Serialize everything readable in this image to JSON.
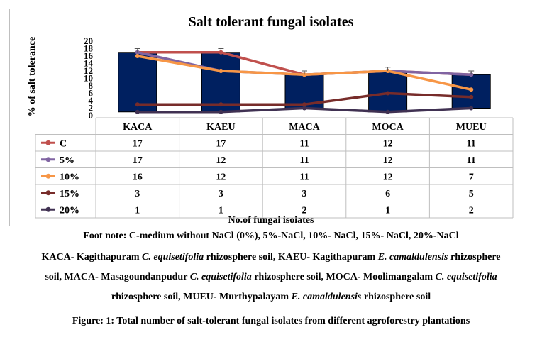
{
  "chart_data": {
    "type": "bar+line",
    "title": "Salt tolerant fungal isolates",
    "ylabel": "% of salt tolerance",
    "xlabel": "No.of  fungal isolates",
    "ylim": [
      0,
      20
    ],
    "yticks": [
      "0",
      "2",
      "4",
      "6",
      "8",
      "10",
      "12",
      "14",
      "16",
      "18",
      "20"
    ],
    "categories": [
      "KACA",
      "KAEU",
      "MACA",
      "MOCA",
      "MUEU"
    ],
    "series": [
      {
        "name": "C",
        "values": [
          17,
          17,
          11,
          12,
          11
        ],
        "color": "#c0504d"
      },
      {
        "name": "5%",
        "values": [
          17,
          12,
          11,
          12,
          11
        ],
        "color": "#8064a2"
      },
      {
        "name": "10%",
        "values": [
          16,
          12,
          11,
          12,
          7
        ],
        "color": "#f79646"
      },
      {
        "name": "15%",
        "values": [
          3,
          3,
          3,
          6,
          5
        ],
        "color": "#772c2a"
      },
      {
        "name": "20%",
        "values": [
          1,
          1,
          2,
          1,
          2
        ],
        "color": "#403152"
      }
    ],
    "bar_color": "#002060",
    "bar_note": "navy box bars span from the 20% value to the C value",
    "error_bar_series": "C",
    "error_bar_value": 1,
    "data_table": true
  },
  "footnotes": {
    "line1": "Foot note: C-medium without NaCl (0%), 5%-NaCl, 10%- NaCl, 15%- NaCl, 20%-NaCl",
    "line2_a": "KACA- Kagithapuram ",
    "line2_b": "C. equisetifolia",
    "line2_c": " rhizosphere soil, KAEU- Kagithapuram ",
    "line2_d": "E. camaldulensis",
    "line2_e": " rhizosphere",
    "line3_a": "soil, MACA- Masagoundanpudur ",
    "line3_b": "C. equisetifolia",
    "line3_c": " rhizosphere soil, MOCA- Moolimangalam ",
    "line3_d": "C. equisetifolia",
    "line4_a": "rhizosphere soil, MUEU- Murthypalayam ",
    "line4_b": "E. camaldulensis",
    "line4_c": " rhizosphere soil"
  },
  "caption": "Figure: 1: Total number of salt-tolerant fungal isolates from different agroforestry plantations"
}
